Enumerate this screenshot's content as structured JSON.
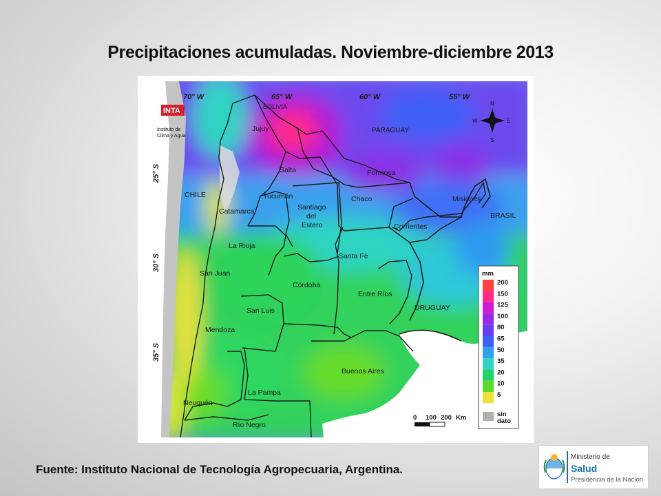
{
  "title": "Precipitaciones acumuladas. Noviembre-diciembre 2013",
  "source": "Fuente: Instituto Nacional de Tecnología Agropecuaria, Argentina.",
  "map": {
    "logo_text": "INTA",
    "logo_sub": [
      "Instituto de",
      "Clima y Agua"
    ],
    "coords": {
      "lon": [
        "70° W",
        "65° W",
        "60° W",
        "55° W"
      ],
      "lat": [
        "25° S",
        "30° S",
        "35° S"
      ]
    },
    "compass": {
      "n": "N",
      "s": "S",
      "e": "E",
      "w": "W"
    },
    "countries": [
      "BOLIVIA",
      "PARAGUAY",
      "CHILE",
      "BRASIL",
      "URUGUAY"
    ],
    "provinces": [
      "Jujuy",
      "Salta",
      "Formosa",
      "Chaco",
      "Misiones",
      "Tucumán",
      "Catamarca",
      "Santiago",
      "del",
      "Estero",
      "Corrientes",
      "La Rioja",
      "Santa Fe",
      "San Juan",
      "Córdoba",
      "Entre Ríos",
      "San Luis",
      "Mendoza",
      "Buenos Aires",
      "La Pampa",
      "Neuquén",
      "Río Negro"
    ],
    "scale": {
      "labels": [
        "0",
        "100",
        "200",
        "Km"
      ]
    },
    "legend": {
      "unit": "mm",
      "no_data": [
        "sin",
        "dato"
      ],
      "levels": [
        {
          "label": "200",
          "color": "#ff4040"
        },
        {
          "label": "150",
          "color": "#ff2a8a"
        },
        {
          "label": "125",
          "color": "#d21ad2"
        },
        {
          "label": "100",
          "color": "#9a28e6"
        },
        {
          "label": "80",
          "color": "#6a3cf0"
        },
        {
          "label": "65",
          "color": "#3f5ff5"
        },
        {
          "label": "50",
          "color": "#2ea0ee"
        },
        {
          "label": "35",
          "color": "#2ed3c2"
        },
        {
          "label": "20",
          "color": "#22d36a"
        },
        {
          "label": "10",
          "color": "#5edb2a"
        },
        {
          "label": "5",
          "color": "#e8e23a"
        }
      ],
      "no_data_color": "#b0b0b0"
    }
  },
  "ministry": {
    "line1": "Ministerio de",
    "line2": "Salud",
    "line3": "Presidencia de la Nación"
  }
}
